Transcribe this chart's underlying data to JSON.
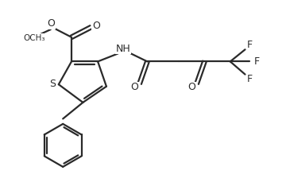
{
  "bg_color": "#ffffff",
  "line_color": "#2a2a2a",
  "text_color": "#2a2a2a",
  "line_width": 1.6,
  "font_size": 8.5,
  "figsize": [
    3.6,
    2.34
  ],
  "dpi": 100,
  "xlim": [
    0,
    10
  ],
  "ylim": [
    0,
    6.5
  ]
}
